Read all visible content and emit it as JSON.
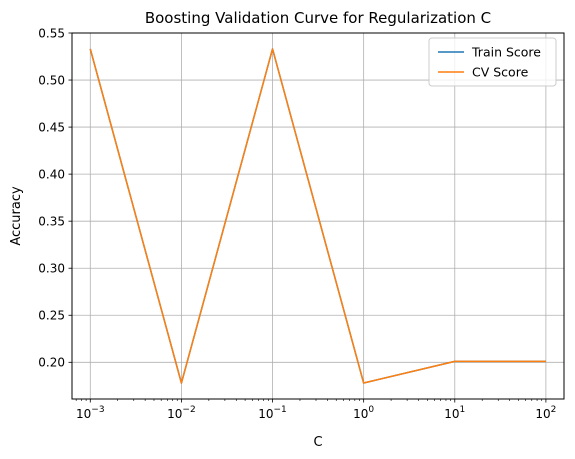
{
  "chart_data": {
    "type": "line",
    "title": "Boosting Validation Curve for Regularization C",
    "xlabel": "C",
    "ylabel": "Accuracy",
    "xscale": "log",
    "x": [
      0.001,
      0.01,
      0.1,
      1,
      10,
      100
    ],
    "xlim": [
      0.00063,
      158
    ],
    "ylim": [
      0.161,
      0.55
    ],
    "grid": true,
    "legend_position": "top-right",
    "x_ticks": [
      {
        "value": 0.001,
        "base": "10",
        "exp": "−3"
      },
      {
        "value": 0.01,
        "base": "10",
        "exp": "−2"
      },
      {
        "value": 0.1,
        "base": "10",
        "exp": "−1"
      },
      {
        "value": 1,
        "base": "10",
        "exp": "0"
      },
      {
        "value": 10,
        "base": "10",
        "exp": "1"
      },
      {
        "value": 100,
        "base": "10",
        "exp": "2"
      }
    ],
    "y_ticks": [
      0.2,
      0.25,
      0.3,
      0.35,
      0.4,
      0.45,
      0.5,
      0.55
    ],
    "series": [
      {
        "name": "Train Score",
        "color": "#1f77b4",
        "values": [
          0.533,
          0.178,
          0.533,
          0.178,
          0.201,
          0.201
        ]
      },
      {
        "name": "CV Score",
        "color": "#ff7f0e",
        "values": [
          0.533,
          0.178,
          0.533,
          0.178,
          0.201,
          0.201
        ]
      }
    ]
  }
}
